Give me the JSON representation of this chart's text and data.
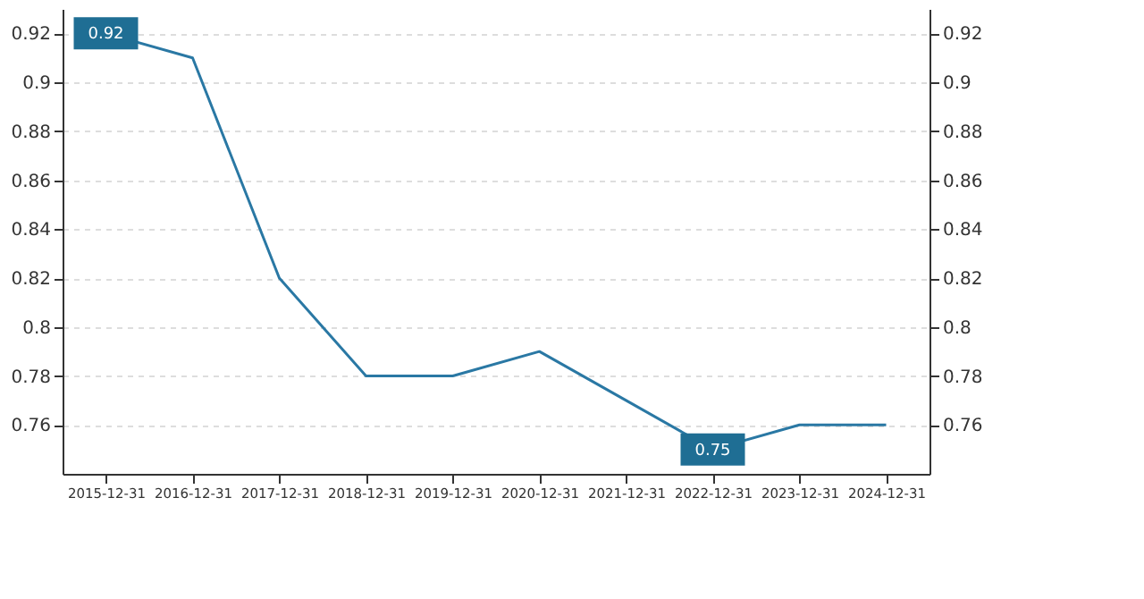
{
  "chart_data": {
    "type": "line",
    "categories": [
      "2015-12-31",
      "2016-12-31",
      "2017-12-31",
      "2018-12-31",
      "2019-12-31",
      "2020-12-31",
      "2021-12-31",
      "2022-12-31",
      "2023-12-31",
      "2024-12-31"
    ],
    "series": [
      {
        "color": "#2a78a4",
        "values": [
          0.92,
          0.91,
          0.82,
          0.78,
          0.78,
          0.79,
          0.77,
          0.75,
          0.76,
          0.76
        ],
        "value_labels": [
          "0.92",
          null,
          null,
          null,
          null,
          null,
          null,
          "0.75",
          null,
          null
        ]
      }
    ],
    "ylim": [
      0.74,
      0.93
    ],
    "yticks": [
      0.76,
      0.78,
      0.8,
      0.82,
      0.84,
      0.86,
      0.88,
      0.9,
      0.92
    ],
    "y2lim": [
      0.74,
      0.93
    ],
    "y2ticks": [
      0.76,
      0.78,
      0.8,
      0.82,
      0.84,
      0.86,
      0.88,
      0.9,
      0.92
    ],
    "grid": "y",
    "marker": "none",
    "line_style": "solid"
  }
}
